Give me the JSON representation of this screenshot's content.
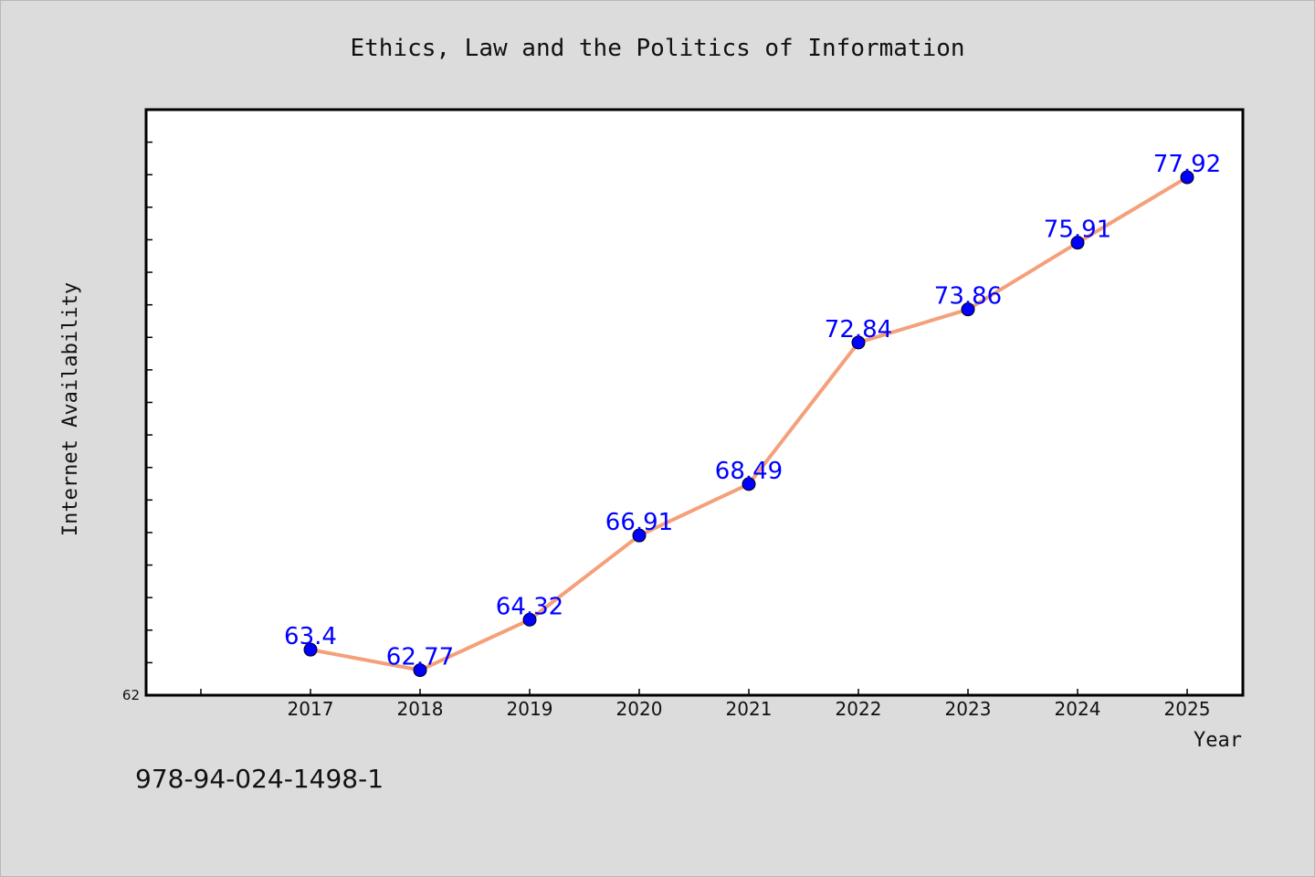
{
  "chart_data": {
    "type": "line",
    "title": "Ethics, Law and the Politics of Information",
    "xlabel": "Year",
    "ylabel": "Internet Availability",
    "categories": [
      "2017",
      "2018",
      "2019",
      "2020",
      "2021",
      "2022",
      "2023",
      "2024",
      "2025"
    ],
    "series": [
      {
        "values": [
          63.4,
          62.77,
          64.32,
          66.91,
          68.49,
          72.84,
          73.86,
          75.91,
          77.92
        ],
        "data_labels": [
          "63.4",
          "62.77",
          "64.32",
          "66.91",
          "68.49",
          "72.84",
          "73.86",
          "75.91",
          "77.92"
        ],
        "line_color": "#f4a07a",
        "marker_color": "#0000ff"
      }
    ],
    "ylim": [
      62,
      80
    ],
    "yticks_labeled": [
      "62"
    ],
    "grid": false,
    "legend": "none"
  },
  "footer": {
    "isbn": "978-94-024-1498-1"
  },
  "colors": {
    "background": "#dcdcdc",
    "plot_background": "#ffffff",
    "data_label": "#0000ff"
  }
}
